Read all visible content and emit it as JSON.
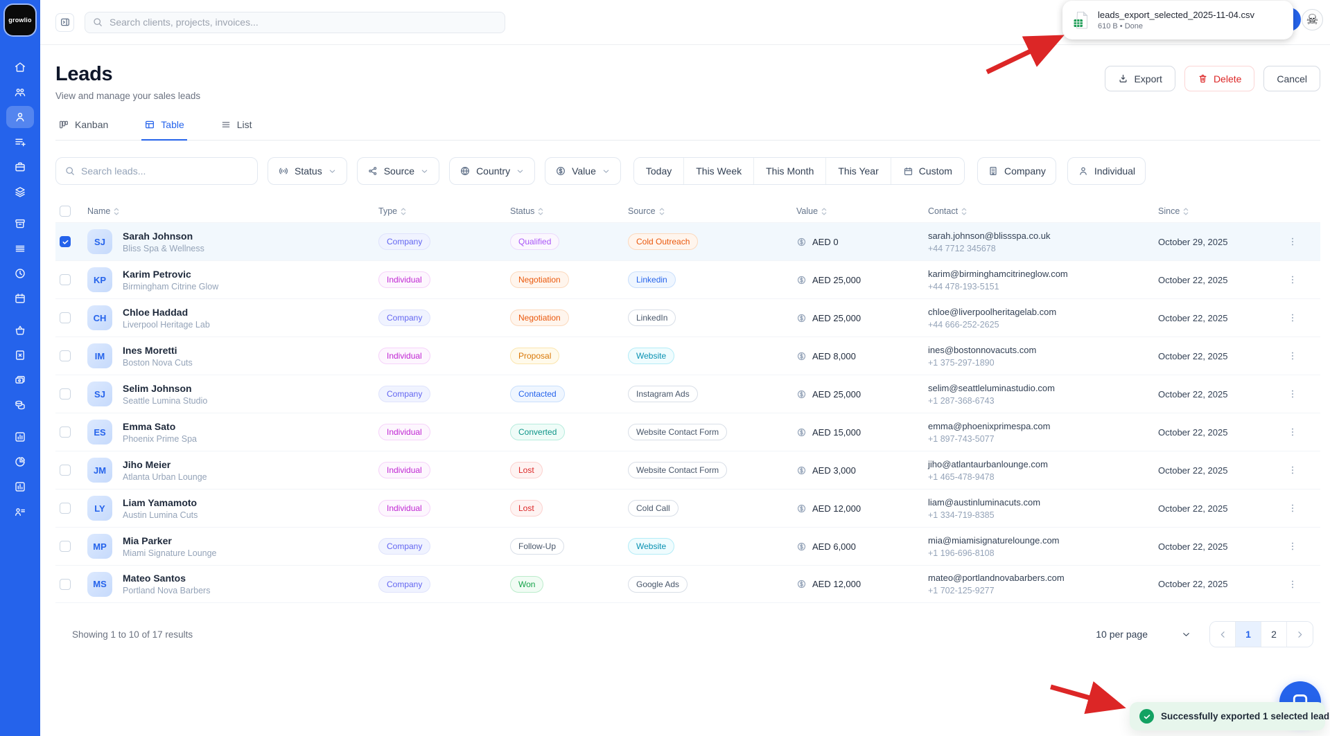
{
  "colors": {
    "accent": "#2563eb",
    "sidebar": "#2563eb",
    "danger": "#dc2626",
    "success": "#12a262",
    "annotation_arrow": "#dc2626"
  },
  "sidebar": {
    "logo_text": "growlio",
    "items": [
      {
        "icon": "home",
        "active": false
      },
      {
        "icon": "users",
        "active": false
      },
      {
        "icon": "user",
        "active": true
      },
      {
        "icon": "list-plus",
        "active": false
      },
      {
        "icon": "briefcase",
        "active": false
      },
      {
        "icon": "layers",
        "active": false
      },
      {
        "icon": "archive",
        "active": false
      },
      {
        "icon": "rows",
        "active": false
      },
      {
        "icon": "clock",
        "active": false
      },
      {
        "icon": "calendar",
        "active": false
      },
      {
        "icon": "basket",
        "active": false
      },
      {
        "icon": "receipt",
        "active": false
      },
      {
        "icon": "wallet",
        "active": false
      },
      {
        "icon": "coins",
        "active": false
      },
      {
        "icon": "bar-chart",
        "active": false
      },
      {
        "icon": "pie-chart",
        "active": false
      },
      {
        "icon": "column-chart",
        "active": false
      },
      {
        "icon": "user-list",
        "active": false
      }
    ]
  },
  "topbar": {
    "search_placeholder": "Search clients, projects, invoices..."
  },
  "download_popup": {
    "filename": "leads_export_selected_2025-11-04.csv",
    "meta": "610 B • Done"
  },
  "page": {
    "title": "Leads",
    "subtitle": "View and manage your sales leads"
  },
  "actions": {
    "export": "Export",
    "delete": "Delete",
    "cancel": "Cancel"
  },
  "tabs": [
    {
      "label": "Kanban",
      "icon": "kanban",
      "active": false
    },
    {
      "label": "Table",
      "icon": "table",
      "active": true
    },
    {
      "label": "List",
      "icon": "list",
      "active": false
    }
  ],
  "filters": {
    "search_placeholder": "Search leads...",
    "dropdowns": [
      {
        "label": "Status",
        "icon": "signal"
      },
      {
        "label": "Source",
        "icon": "share"
      },
      {
        "label": "Country",
        "icon": "globe"
      },
      {
        "label": "Value",
        "icon": "dollar"
      }
    ],
    "date_range": [
      "Today",
      "This Week",
      "This Month",
      "This Year"
    ],
    "custom": {
      "label": "Custom",
      "icon": "calendar"
    },
    "type_buttons": [
      {
        "label": "Company",
        "icon": "building"
      },
      {
        "label": "Individual",
        "icon": "person"
      }
    ]
  },
  "table": {
    "columns": [
      "Name",
      "Type",
      "Status",
      "Source",
      "Value",
      "Contact",
      "Since"
    ],
    "rows": [
      {
        "initials": "SJ",
        "name": "Sarah Johnson",
        "company": "Bliss Spa & Wellness",
        "type": {
          "label": "Company",
          "variant": "indigo"
        },
        "status": {
          "label": "Qualified",
          "variant": "purple"
        },
        "source": {
          "label": "Cold Outreach",
          "variant": "orange"
        },
        "value": "AED 0",
        "email": "sarah.johnson@blissspa.co.uk",
        "phone": "+44 7712 345678",
        "since": "October 29, 2025",
        "selected": true
      },
      {
        "initials": "KP",
        "name": "Karim Petrovic",
        "company": "Birmingham Citrine Glow",
        "type": {
          "label": "Individual",
          "variant": "fuchsia"
        },
        "status": {
          "label": "Negotiation",
          "variant": "orange"
        },
        "source": {
          "label": "Linkedin",
          "variant": "blue"
        },
        "value": "AED 25,000",
        "email": "karim@birminghamcitrineglow.com",
        "phone": "+44 478-193-5151",
        "since": "October 22, 2025",
        "selected": false
      },
      {
        "initials": "CH",
        "name": "Chloe Haddad",
        "company": "Liverpool Heritage Lab",
        "type": {
          "label": "Company",
          "variant": "indigo"
        },
        "status": {
          "label": "Negotiation",
          "variant": "orange"
        },
        "source": {
          "label": "LinkedIn",
          "variant": "neutral"
        },
        "value": "AED 25,000",
        "email": "chloe@liverpoolheritagelab.com",
        "phone": "+44 666-252-2625",
        "since": "October 22, 2025",
        "selected": false
      },
      {
        "initials": "IM",
        "name": "Ines Moretti",
        "company": "Boston Nova Cuts",
        "type": {
          "label": "Individual",
          "variant": "fuchsia"
        },
        "status": {
          "label": "Proposal",
          "variant": "amber"
        },
        "source": {
          "label": "Website",
          "variant": "cyan"
        },
        "value": "AED 8,000",
        "email": "ines@bostonnovacuts.com",
        "phone": "+1 375-297-1890",
        "since": "October 22, 2025",
        "selected": false
      },
      {
        "initials": "SJ",
        "name": "Selim Johnson",
        "company": "Seattle Lumina Studio",
        "type": {
          "label": "Company",
          "variant": "indigo"
        },
        "status": {
          "label": "Contacted",
          "variant": "blue"
        },
        "source": {
          "label": "Instagram Ads",
          "variant": "neutral"
        },
        "value": "AED 25,000",
        "email": "selim@seattleluminastudio.com",
        "phone": "+1 287-368-6743",
        "since": "October 22, 2025",
        "selected": false
      },
      {
        "initials": "ES",
        "name": "Emma Sato",
        "company": "Phoenix Prime Spa",
        "type": {
          "label": "Individual",
          "variant": "fuchsia"
        },
        "status": {
          "label": "Converted",
          "variant": "teal"
        },
        "source": {
          "label": "Website Contact Form",
          "variant": "neutral"
        },
        "value": "AED 15,000",
        "email": "emma@phoenixprimespa.com",
        "phone": "+1 897-743-5077",
        "since": "October 22, 2025",
        "selected": false
      },
      {
        "initials": "JM",
        "name": "Jiho Meier",
        "company": "Atlanta Urban Lounge",
        "type": {
          "label": "Individual",
          "variant": "fuchsia"
        },
        "status": {
          "label": "Lost",
          "variant": "red"
        },
        "source": {
          "label": "Website Contact Form",
          "variant": "neutral"
        },
        "value": "AED 3,000",
        "email": "jiho@atlantaurbanlounge.com",
        "phone": "+1 465-478-9478",
        "since": "October 22, 2025",
        "selected": false
      },
      {
        "initials": "LY",
        "name": "Liam Yamamoto",
        "company": "Austin Lumina Cuts",
        "type": {
          "label": "Individual",
          "variant": "fuchsia"
        },
        "status": {
          "label": "Lost",
          "variant": "red"
        },
        "source": {
          "label": "Cold Call",
          "variant": "neutral"
        },
        "value": "AED 12,000",
        "email": "liam@austinluminacuts.com",
        "phone": "+1 334-719-8385",
        "since": "October 22, 2025",
        "selected": false
      },
      {
        "initials": "MP",
        "name": "Mia Parker",
        "company": "Miami Signature Lounge",
        "type": {
          "label": "Company",
          "variant": "indigo"
        },
        "status": {
          "label": "Follow-Up",
          "variant": "neutral"
        },
        "source": {
          "label": "Website",
          "variant": "cyan"
        },
        "value": "AED 6,000",
        "email": "mia@miamisignaturelounge.com",
        "phone": "+1 196-696-8108",
        "since": "October 22, 2025",
        "selected": false
      },
      {
        "initials": "MS",
        "name": "Mateo Santos",
        "company": "Portland Nova Barbers",
        "type": {
          "label": "Company",
          "variant": "indigo"
        },
        "status": {
          "label": "Won",
          "variant": "green"
        },
        "source": {
          "label": "Google Ads",
          "variant": "neutral"
        },
        "value": "AED 12,000",
        "email": "mateo@portlandnovabarbers.com",
        "phone": "+1 702-125-9277",
        "since": "October 22, 2025",
        "selected": false
      }
    ]
  },
  "footer": {
    "showing": "Showing 1 to 10 of 17 results",
    "per_page": "10 per page",
    "pages": [
      "1",
      "2"
    ],
    "current_page": "1"
  },
  "toast": {
    "message": "Successfully exported 1 selected lead"
  }
}
